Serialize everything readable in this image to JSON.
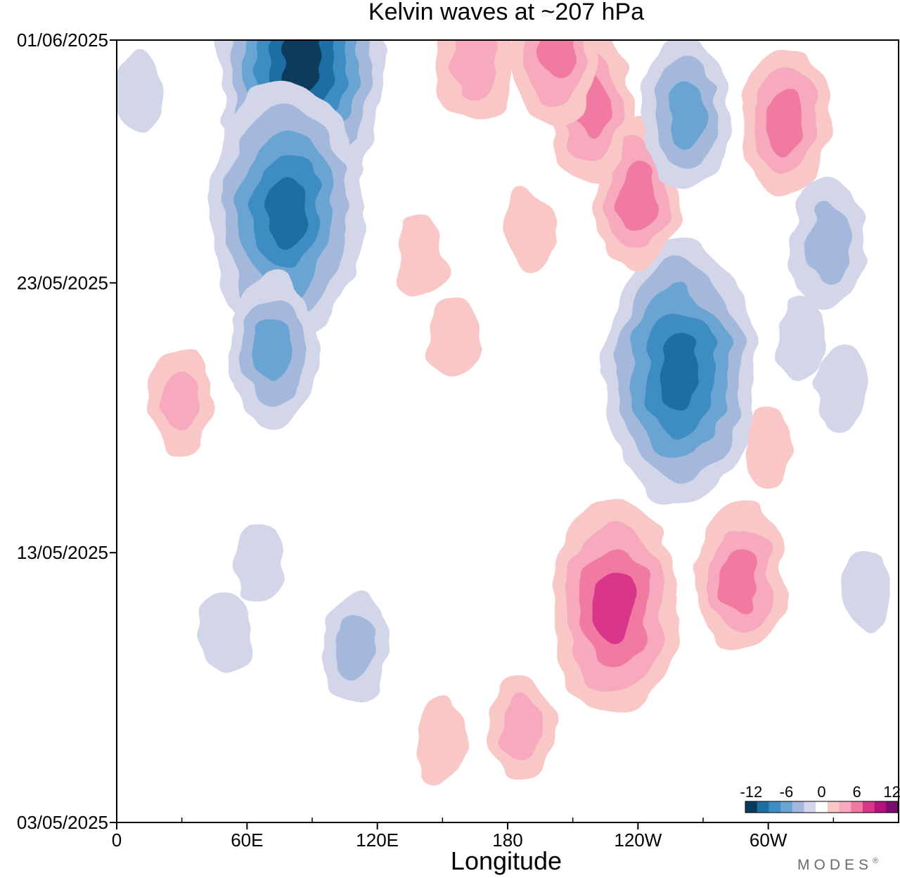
{
  "chart_data": {
    "type": "heatmap",
    "title": "Kelvin waves at ~207 hPa",
    "xlabel": "Longitude",
    "ylabel": "",
    "x_ticks": [
      {
        "lon": 0,
        "label": "0"
      },
      {
        "lon": 60,
        "label": "60E"
      },
      {
        "lon": 120,
        "label": "120E"
      },
      {
        "lon": 180,
        "label": "180"
      },
      {
        "lon": 240,
        "label": "120W"
      },
      {
        "lon": 300,
        "label": "60W"
      }
    ],
    "x_minor_ticks": [
      30,
      90,
      150,
      210,
      270,
      330
    ],
    "xlim": [
      0,
      360
    ],
    "y_ticks": [
      {
        "day": 0,
        "label": "03/05/2025"
      },
      {
        "day": 10,
        "label": "13/05/2025"
      },
      {
        "day": 20,
        "label": "23/05/2025"
      },
      {
        "day": 29,
        "label": "01/06/2025"
      }
    ],
    "ylim_dates": [
      "03/05/2025",
      "01/06/2025"
    ],
    "colorbar": {
      "ticks": [
        "-12",
        "-6",
        "0",
        "6",
        "12"
      ],
      "levels": [
        -12,
        -10,
        -8,
        -6,
        -4,
        -2,
        0,
        2,
        4,
        6,
        8,
        10,
        12
      ],
      "colors": [
        "#0b3b5c",
        "#1c6ea4",
        "#3d8cc4",
        "#6aa4d2",
        "#a3b8da",
        "#d3d6e9",
        "#ffffff",
        "#f9c7c6",
        "#f7a9bd",
        "#f07aa2",
        "#d9368a",
        "#b3127a",
        "#7a0d6e"
      ]
    },
    "anomalies": [
      {
        "lon": 85,
        "day": 28.3,
        "value": -11
      },
      {
        "lon": 78,
        "day": 22.6,
        "value": -10
      },
      {
        "lon": 72,
        "day": 17.5,
        "value": -5
      },
      {
        "lon": 30,
        "day": 15.5,
        "value": 3
      },
      {
        "lon": 259,
        "day": 16.7,
        "value": -10
      },
      {
        "lon": 240,
        "day": 23.3,
        "value": 5
      },
      {
        "lon": 218,
        "day": 26.6,
        "value": 5
      },
      {
        "lon": 202,
        "day": 28.6,
        "value": 5
      },
      {
        "lon": 165,
        "day": 28.3,
        "value": 4
      },
      {
        "lon": 262,
        "day": 26.3,
        "value": -5
      },
      {
        "lon": 308,
        "day": 26.0,
        "value": 5
      },
      {
        "lon": 327,
        "day": 21.5,
        "value": -4
      },
      {
        "lon": 229,
        "day": 8.0,
        "value": 8
      },
      {
        "lon": 287,
        "day": 9.0,
        "value": 5
      },
      {
        "lon": 186,
        "day": 3.5,
        "value": 3
      },
      {
        "lon": 150,
        "day": 3.0,
        "value": 2
      },
      {
        "lon": 155,
        "day": 18.0,
        "value": 2
      },
      {
        "lon": 140,
        "day": 21.0,
        "value": 2
      },
      {
        "lon": 190,
        "day": 22.0,
        "value": 2
      },
      {
        "lon": 300,
        "day": 14.0,
        "value": 2
      },
      {
        "lon": 110,
        "day": 6.5,
        "value": -3
      },
      {
        "lon": 50,
        "day": 7.0,
        "value": -2
      },
      {
        "lon": 65,
        "day": 9.5,
        "value": -2
      },
      {
        "lon": 10,
        "day": 27.0,
        "value": -2
      },
      {
        "lon": 345,
        "day": 8.5,
        "value": -2
      },
      {
        "lon": 333,
        "day": 16.0,
        "value": -2
      },
      {
        "lon": 315,
        "day": 18.0,
        "value": -2
      }
    ]
  },
  "branding": {
    "text": "MODES",
    "mark": "®"
  }
}
